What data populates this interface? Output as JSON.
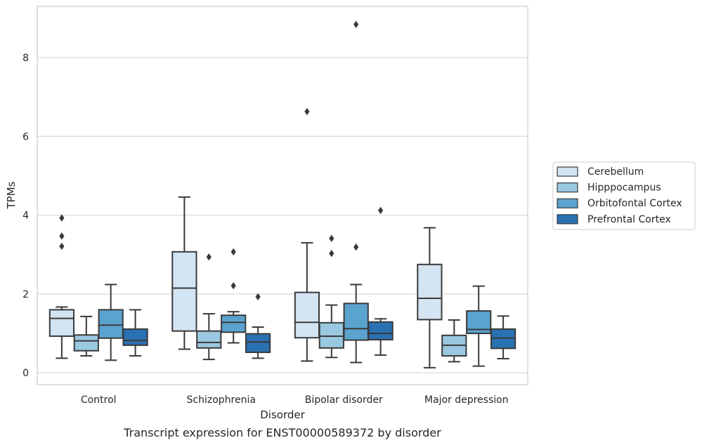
{
  "chart_data": {
    "type": "box",
    "title": "",
    "caption": "Transcript expression for ENST00000589372 by disorder",
    "xlabel": "Disorder",
    "ylabel": "TPMs",
    "ylim": [
      -0.3,
      9.3
    ],
    "yticks": [
      0,
      2,
      4,
      6,
      8
    ],
    "grid": "horizontal",
    "legend_position": "outside-right",
    "categories": [
      "Control",
      "Schizophrenia",
      "Bipolar disorder",
      "Major depression"
    ],
    "series": [
      {
        "name": "Cerebellum",
        "color": "#d3e4f3",
        "boxes": [
          {
            "whisker_low": 0.37,
            "q1": 0.93,
            "median": 1.38,
            "q3": 1.6,
            "whisker_high": 1.67,
            "outliers": [
              3.21,
              3.47,
              3.93
            ]
          },
          {
            "whisker_low": 0.6,
            "q1": 1.06,
            "median": 2.15,
            "q3": 3.07,
            "whisker_high": 4.46,
            "outliers": []
          },
          {
            "whisker_low": 0.3,
            "q1": 0.89,
            "median": 1.28,
            "q3": 2.04,
            "whisker_high": 3.3,
            "outliers": [
              6.63
            ]
          },
          {
            "whisker_low": 0.13,
            "q1": 1.35,
            "median": 1.89,
            "q3": 2.75,
            "whisker_high": 3.68,
            "outliers": []
          }
        ]
      },
      {
        "name": "Hipppocampus",
        "color": "#9ac8e0",
        "boxes": [
          {
            "whisker_low": 0.43,
            "q1": 0.56,
            "median": 0.81,
            "q3": 0.96,
            "whisker_high": 1.43,
            "outliers": []
          },
          {
            "whisker_low": 0.34,
            "q1": 0.63,
            "median": 0.77,
            "q3": 1.06,
            "whisker_high": 1.5,
            "outliers": [
              2.94
            ]
          },
          {
            "whisker_low": 0.39,
            "q1": 0.63,
            "median": 0.93,
            "q3": 1.27,
            "whisker_high": 1.72,
            "outliers": [
              3.03,
              3.41
            ]
          },
          {
            "whisker_low": 0.28,
            "q1": 0.43,
            "median": 0.7,
            "q3": 0.95,
            "whisker_high": 1.34,
            "outliers": []
          }
        ]
      },
      {
        "name": "Orbitofontal Cortex",
        "color": "#5ba3cf",
        "boxes": [
          {
            "whisker_low": 0.32,
            "q1": 0.88,
            "median": 1.21,
            "q3": 1.6,
            "whisker_high": 2.24,
            "outliers": []
          },
          {
            "whisker_low": 0.76,
            "q1": 1.03,
            "median": 1.28,
            "q3": 1.46,
            "whisker_high": 1.55,
            "outliers": [
              2.21,
              3.07
            ]
          },
          {
            "whisker_low": 0.26,
            "q1": 0.83,
            "median": 1.12,
            "q3": 1.76,
            "whisker_high": 2.24,
            "outliers": [
              3.19,
              8.84
            ]
          },
          {
            "whisker_low": 0.17,
            "q1": 1.0,
            "median": 1.1,
            "q3": 1.57,
            "whisker_high": 2.2,
            "outliers": []
          }
        ]
      },
      {
        "name": "Prefrontal Cortex",
        "color": "#2a71b2",
        "boxes": [
          {
            "whisker_low": 0.43,
            "q1": 0.7,
            "median": 0.82,
            "q3": 1.11,
            "whisker_high": 1.6,
            "outliers": []
          },
          {
            "whisker_low": 0.37,
            "q1": 0.52,
            "median": 0.78,
            "q3": 0.99,
            "whisker_high": 1.16,
            "outliers": [
              1.93
            ]
          },
          {
            "whisker_low": 0.45,
            "q1": 0.84,
            "median": 1.0,
            "q3": 1.29,
            "whisker_high": 1.37,
            "outliers": [
              4.12
            ]
          },
          {
            "whisker_low": 0.36,
            "q1": 0.62,
            "median": 0.88,
            "q3": 1.11,
            "whisker_high": 1.44,
            "outliers": []
          }
        ]
      }
    ]
  }
}
